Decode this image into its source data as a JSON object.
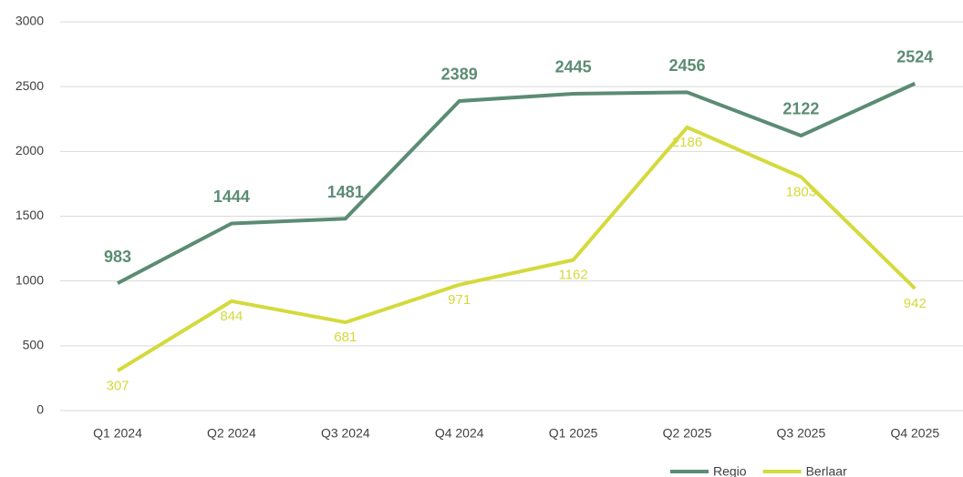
{
  "chart_data": {
    "type": "line",
    "categories": [
      "Q1 2024",
      "Q2 2024",
      "Q3 2024",
      "Q4 2024",
      "Q1 2025",
      "Q2 2025",
      "Q3 2025",
      "Q4 2025"
    ],
    "series": [
      {
        "name": "Regio",
        "color": "#5b8c73",
        "values": [
          983,
          1444,
          1481,
          2389,
          2445,
          2456,
          2122,
          2524
        ]
      },
      {
        "name": "Berlaar",
        "color": "#d4da3c",
        "values": [
          307,
          844,
          681,
          971,
          1162,
          2186,
          1803,
          942
        ]
      }
    ],
    "ylim": [
      0,
      3000
    ],
    "yticks": [
      0,
      500,
      1000,
      1500,
      2000,
      2500,
      3000
    ],
    "grid": true,
    "legend": "bottom"
  }
}
